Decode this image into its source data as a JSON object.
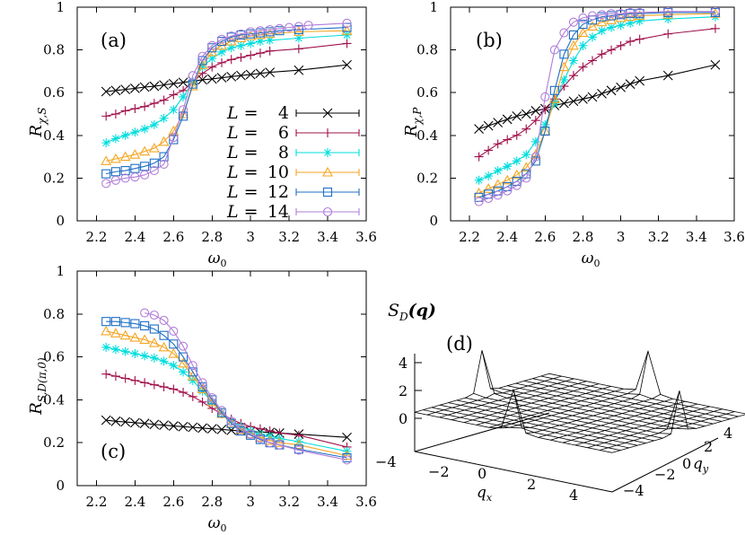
{
  "chart_data": [
    {
      "type": "line",
      "panel_label": "(a)",
      "xlabel": "ω",
      "xlabel_sub": "0",
      "ylabel": "R",
      "ylabel_sub": "χ,S",
      "xlim": [
        2.1,
        3.6
      ],
      "ylim": [
        0,
        1
      ],
      "xticks": [
        2.2,
        2.4,
        2.6,
        2.8,
        3.0,
        3.2,
        3.4,
        3.6
      ],
      "xtick_labels": [
        "2.2",
        "2.4",
        "2.6",
        "2.8",
        "3",
        "3.2",
        "3.4",
        "3.6"
      ],
      "yticks": [
        0,
        0.2,
        0.4,
        0.6,
        0.8,
        1.0
      ],
      "ytick_labels": [
        "0",
        "0.2",
        "0.4",
        "0.6",
        "0.8",
        "1"
      ],
      "legend": "inside, right, middle",
      "series": [
        {
          "name": "L = 4",
          "size": "4",
          "x": [
            2.25,
            2.3,
            2.35,
            2.4,
            2.45,
            2.5,
            2.55,
            2.6,
            2.65,
            2.7,
            2.75,
            2.8,
            2.85,
            2.9,
            2.95,
            3.0,
            3.05,
            3.1,
            3.25,
            3.5
          ],
          "values": [
            0.605,
            0.61,
            0.615,
            0.62,
            0.626,
            0.63,
            0.636,
            0.642,
            0.648,
            0.654,
            0.66,
            0.664,
            0.67,
            0.675,
            0.68,
            0.685,
            0.69,
            0.695,
            0.705,
            0.73
          ]
        },
        {
          "name": "L = 6",
          "size": "6",
          "x": [
            2.25,
            2.3,
            2.35,
            2.4,
            2.45,
            2.5,
            2.55,
            2.6,
            2.65,
            2.7,
            2.75,
            2.8,
            2.85,
            2.9,
            2.95,
            3.0,
            3.05,
            3.1,
            3.25,
            3.5
          ],
          "values": [
            0.49,
            0.5,
            0.515,
            0.525,
            0.535,
            0.55,
            0.565,
            0.59,
            0.61,
            0.65,
            0.69,
            0.72,
            0.74,
            0.755,
            0.765,
            0.775,
            0.785,
            0.795,
            0.805,
            0.83
          ]
        },
        {
          "name": "L = 8",
          "size": "8",
          "x": [
            2.25,
            2.3,
            2.35,
            2.4,
            2.45,
            2.5,
            2.55,
            2.6,
            2.65,
            2.7,
            2.75,
            2.8,
            2.85,
            2.9,
            2.95,
            3.0,
            3.05,
            3.1,
            3.25,
            3.5
          ],
          "values": [
            0.365,
            0.385,
            0.4,
            0.415,
            0.43,
            0.45,
            0.48,
            0.52,
            0.58,
            0.65,
            0.72,
            0.76,
            0.79,
            0.81,
            0.82,
            0.83,
            0.84,
            0.845,
            0.855,
            0.87
          ]
        },
        {
          "name": "L = 10",
          "size": "10",
          "x": [
            2.25,
            2.3,
            2.35,
            2.4,
            2.45,
            2.5,
            2.55,
            2.6,
            2.65,
            2.7,
            2.75,
            2.8,
            2.85,
            2.9,
            2.95,
            3.0,
            3.05,
            3.1,
            3.25,
            3.5
          ],
          "values": [
            0.28,
            0.29,
            0.3,
            0.31,
            0.325,
            0.34,
            0.37,
            0.42,
            0.5,
            0.63,
            0.73,
            0.79,
            0.82,
            0.84,
            0.855,
            0.865,
            0.87,
            0.875,
            0.885,
            0.89
          ]
        },
        {
          "name": "L = 12",
          "size": "12",
          "x": [
            2.25,
            2.3,
            2.35,
            2.4,
            2.45,
            2.5,
            2.55,
            2.6,
            2.65,
            2.7,
            2.75,
            2.8,
            2.85,
            2.9,
            2.95,
            3.0,
            3.05,
            3.1,
            3.15,
            3.25,
            3.5
          ],
          "values": [
            0.22,
            0.23,
            0.235,
            0.245,
            0.255,
            0.27,
            0.3,
            0.38,
            0.49,
            0.64,
            0.75,
            0.81,
            0.84,
            0.86,
            0.87,
            0.875,
            0.88,
            0.885,
            0.89,
            0.895,
            0.905
          ]
        },
        {
          "name": "L = 14",
          "size": "14",
          "x": [
            2.25,
            2.3,
            2.35,
            2.4,
            2.45,
            2.5,
            2.55,
            2.6,
            2.65,
            2.7,
            2.75,
            2.8,
            2.85,
            2.9,
            2.95,
            3.0,
            3.05,
            3.1,
            3.15,
            3.2,
            3.25,
            3.3,
            3.5
          ],
          "values": [
            0.175,
            0.19,
            0.2,
            0.205,
            0.215,
            0.235,
            0.265,
            0.39,
            0.52,
            0.68,
            0.77,
            0.82,
            0.85,
            0.865,
            0.875,
            0.885,
            0.89,
            0.895,
            0.9,
            0.905,
            0.91,
            0.915,
            0.925
          ]
        }
      ]
    },
    {
      "type": "line",
      "panel_label": "(b)",
      "xlabel": "ω",
      "xlabel_sub": "0",
      "ylabel": "R",
      "ylabel_sub": "χ,P",
      "xlim": [
        2.1,
        3.6
      ],
      "ylim": [
        0,
        1
      ],
      "xticks": [
        2.2,
        2.4,
        2.6,
        2.8,
        3.0,
        3.2,
        3.4,
        3.6
      ],
      "xtick_labels": [
        "2.2",
        "2.4",
        "2.6",
        "2.8",
        "3",
        "3.2",
        "3.4",
        "3.6"
      ],
      "yticks": [
        0,
        0.2,
        0.4,
        0.6,
        0.8,
        1.0
      ],
      "ytick_labels": [
        "0",
        "0.2",
        "0.4",
        "0.6",
        "0.8",
        "1"
      ],
      "series": [
        {
          "name": "L = 4",
          "size": "4",
          "x": [
            2.25,
            2.3,
            2.35,
            2.4,
            2.45,
            2.5,
            2.55,
            2.6,
            2.65,
            2.7,
            2.75,
            2.8,
            2.85,
            2.9,
            2.95,
            3.0,
            3.05,
            3.1,
            3.25,
            3.5
          ],
          "values": [
            0.43,
            0.445,
            0.46,
            0.475,
            0.49,
            0.5,
            0.515,
            0.525,
            0.54,
            0.55,
            0.56,
            0.57,
            0.58,
            0.595,
            0.61,
            0.625,
            0.64,
            0.655,
            0.68,
            0.73
          ]
        },
        {
          "name": "L = 6",
          "size": "6",
          "x": [
            2.25,
            2.3,
            2.35,
            2.4,
            2.45,
            2.5,
            2.55,
            2.6,
            2.65,
            2.7,
            2.75,
            2.8,
            2.85,
            2.9,
            2.95,
            3.0,
            3.05,
            3.1,
            3.25,
            3.5
          ],
          "values": [
            0.3,
            0.33,
            0.36,
            0.38,
            0.4,
            0.43,
            0.47,
            0.52,
            0.57,
            0.63,
            0.68,
            0.72,
            0.75,
            0.78,
            0.8,
            0.82,
            0.84,
            0.85,
            0.875,
            0.9
          ]
        },
        {
          "name": "L = 8",
          "size": "8",
          "x": [
            2.25,
            2.3,
            2.35,
            2.4,
            2.45,
            2.5,
            2.55,
            2.6,
            2.65,
            2.7,
            2.75,
            2.8,
            2.85,
            2.9,
            2.95,
            3.0,
            3.05,
            3.1,
            3.25,
            3.5
          ],
          "values": [
            0.19,
            0.21,
            0.235,
            0.255,
            0.28,
            0.31,
            0.37,
            0.45,
            0.55,
            0.66,
            0.75,
            0.82,
            0.86,
            0.89,
            0.905,
            0.915,
            0.925,
            0.935,
            0.945,
            0.955
          ]
        },
        {
          "name": "L = 10",
          "size": "10",
          "x": [
            2.25,
            2.3,
            2.35,
            2.4,
            2.45,
            2.5,
            2.55,
            2.6,
            2.65,
            2.7,
            2.75,
            2.8,
            2.85,
            2.9,
            2.95,
            3.0,
            3.05,
            3.1,
            3.25,
            3.5
          ],
          "values": [
            0.13,
            0.15,
            0.17,
            0.19,
            0.215,
            0.25,
            0.31,
            0.42,
            0.57,
            0.72,
            0.82,
            0.88,
            0.91,
            0.93,
            0.94,
            0.95,
            0.955,
            0.96,
            0.965,
            0.97
          ]
        },
        {
          "name": "L = 12",
          "size": "12",
          "x": [
            2.25,
            2.3,
            2.35,
            2.4,
            2.45,
            2.5,
            2.55,
            2.6,
            2.65,
            2.7,
            2.75,
            2.8,
            2.85,
            2.9,
            2.95,
            3.0,
            3.05,
            3.1,
            3.25,
            3.5
          ],
          "values": [
            0.11,
            0.125,
            0.14,
            0.16,
            0.185,
            0.22,
            0.28,
            0.42,
            0.61,
            0.78,
            0.87,
            0.92,
            0.94,
            0.955,
            0.96,
            0.965,
            0.97,
            0.97,
            0.975,
            0.975
          ]
        },
        {
          "name": "L = 14",
          "size": "14",
          "x": [
            2.25,
            2.3,
            2.35,
            2.4,
            2.45,
            2.5,
            2.55,
            2.6,
            2.65,
            2.7,
            2.75,
            2.8,
            2.85,
            2.9,
            2.95,
            3.0,
            3.05,
            3.1,
            3.25,
            3.5
          ],
          "values": [
            0.09,
            0.105,
            0.12,
            0.14,
            0.165,
            0.2,
            0.3,
            0.58,
            0.8,
            0.88,
            0.93,
            0.95,
            0.96,
            0.965,
            0.97,
            0.97,
            0.975,
            0.975,
            0.98,
            0.98
          ]
        }
      ]
    },
    {
      "type": "line",
      "panel_label": "(c)",
      "xlabel": "ω",
      "xlabel_sub": "0",
      "ylabel": "R",
      "ylabel_sub": "S,D(π,0)",
      "xlim": [
        2.1,
        3.6
      ],
      "ylim": [
        0,
        1
      ],
      "xticks": [
        2.2,
        2.4,
        2.6,
        2.8,
        3.0,
        3.2,
        3.4,
        3.6
      ],
      "xtick_labels": [
        "2.2",
        "2.4",
        "2.6",
        "2.8",
        "3",
        "3.2",
        "3.4",
        "3.6"
      ],
      "yticks": [
        0,
        0.2,
        0.4,
        0.6,
        0.8,
        1.0
      ],
      "ytick_labels": [
        "0",
        "0.2",
        "0.4",
        "0.6",
        "0.8",
        "1"
      ],
      "series": [
        {
          "name": "L = 4",
          "size": "4",
          "x": [
            2.25,
            2.3,
            2.35,
            2.4,
            2.45,
            2.5,
            2.55,
            2.6,
            2.65,
            2.7,
            2.75,
            2.8,
            2.85,
            2.9,
            2.95,
            3.0,
            3.05,
            3.1,
            3.15,
            3.25,
            3.5
          ],
          "values": [
            0.305,
            0.3,
            0.297,
            0.293,
            0.29,
            0.285,
            0.282,
            0.278,
            0.275,
            0.272,
            0.268,
            0.265,
            0.262,
            0.258,
            0.255,
            0.252,
            0.25,
            0.248,
            0.245,
            0.24,
            0.225
          ]
        },
        {
          "name": "L = 6",
          "size": "6",
          "x": [
            2.25,
            2.3,
            2.35,
            2.4,
            2.45,
            2.5,
            2.55,
            2.6,
            2.65,
            2.7,
            2.75,
            2.8,
            2.85,
            2.9,
            2.95,
            3.0,
            3.05,
            3.1,
            3.15,
            3.25,
            3.5
          ],
          "values": [
            0.52,
            0.51,
            0.5,
            0.49,
            0.48,
            0.47,
            0.46,
            0.45,
            0.435,
            0.415,
            0.39,
            0.36,
            0.335,
            0.31,
            0.29,
            0.275,
            0.265,
            0.255,
            0.245,
            0.235,
            0.18
          ]
        },
        {
          "name": "L = 8",
          "size": "8",
          "x": [
            2.25,
            2.3,
            2.35,
            2.4,
            2.45,
            2.5,
            2.55,
            2.6,
            2.65,
            2.7,
            2.75,
            2.8,
            2.85,
            2.9,
            2.95,
            3.0,
            3.05,
            3.1,
            3.15,
            3.25,
            3.5
          ],
          "values": [
            0.645,
            0.635,
            0.625,
            0.615,
            0.605,
            0.595,
            0.58,
            0.56,
            0.53,
            0.49,
            0.44,
            0.39,
            0.34,
            0.3,
            0.275,
            0.255,
            0.24,
            0.23,
            0.22,
            0.205,
            0.16
          ]
        },
        {
          "name": "L = 10",
          "size": "10",
          "x": [
            2.25,
            2.3,
            2.35,
            2.4,
            2.45,
            2.5,
            2.55,
            2.6,
            2.65,
            2.7,
            2.75,
            2.8,
            2.85,
            2.9,
            2.95,
            3.0,
            3.05,
            3.1,
            3.15,
            3.25,
            3.5
          ],
          "values": [
            0.72,
            0.71,
            0.7,
            0.69,
            0.68,
            0.665,
            0.645,
            0.615,
            0.57,
            0.51,
            0.45,
            0.39,
            0.335,
            0.29,
            0.26,
            0.24,
            0.225,
            0.21,
            0.2,
            0.19,
            0.14
          ]
        },
        {
          "name": "L = 12",
          "size": "12",
          "x": [
            2.25,
            2.3,
            2.35,
            2.4,
            2.45,
            2.5,
            2.55,
            2.6,
            2.65,
            2.7,
            2.75,
            2.8,
            2.85,
            2.9,
            2.95,
            3.0,
            3.05,
            3.1,
            3.15,
            3.25,
            3.5
          ],
          "values": [
            0.765,
            0.765,
            0.76,
            0.755,
            0.745,
            0.73,
            0.7,
            0.66,
            0.6,
            0.53,
            0.46,
            0.4,
            0.34,
            0.29,
            0.255,
            0.235,
            0.215,
            0.2,
            0.19,
            0.17,
            0.13
          ]
        },
        {
          "name": "L = 14",
          "size": "14",
          "x": [
            2.45,
            2.5,
            2.55,
            2.6,
            2.65,
            2.7,
            2.75,
            2.8,
            2.85,
            2.9,
            2.95,
            3.0,
            3.05,
            3.1,
            3.15,
            3.25,
            3.5
          ],
          "values": [
            0.805,
            0.795,
            0.77,
            0.72,
            0.65,
            0.56,
            0.48,
            0.41,
            0.35,
            0.3,
            0.265,
            0.24,
            0.22,
            0.2,
            0.19,
            0.165,
            0.12
          ]
        }
      ]
    }
  ],
  "legend_symbol": "L",
  "legend_equals": "=",
  "series_colors": [
    "#000000",
    "#a0104a",
    "#00dddd",
    "#f5a623",
    "#1f6fc5",
    "#b07dd9"
  ],
  "series_markers": [
    "cross",
    "plus",
    "asterisk",
    "triangle",
    "square",
    "circle"
  ],
  "surface_plot": {
    "panel_label": "(d)",
    "title": "S",
    "title_sub": "D",
    "title_arg": "(q)",
    "xlabel": "q",
    "xlabel_sub": "x",
    "ylabel": "q",
    "ylabel_sub": "y",
    "z_ticks": [
      "0",
      "2",
      "4"
    ],
    "x_ticks": [
      "−4",
      "−2",
      "0",
      "2",
      "4"
    ],
    "y_ticks": [
      "−4",
      "−2",
      "0",
      "2",
      "4"
    ],
    "peak_height": 5,
    "peaks_at": "(±π,0) and (0,±π)"
  }
}
